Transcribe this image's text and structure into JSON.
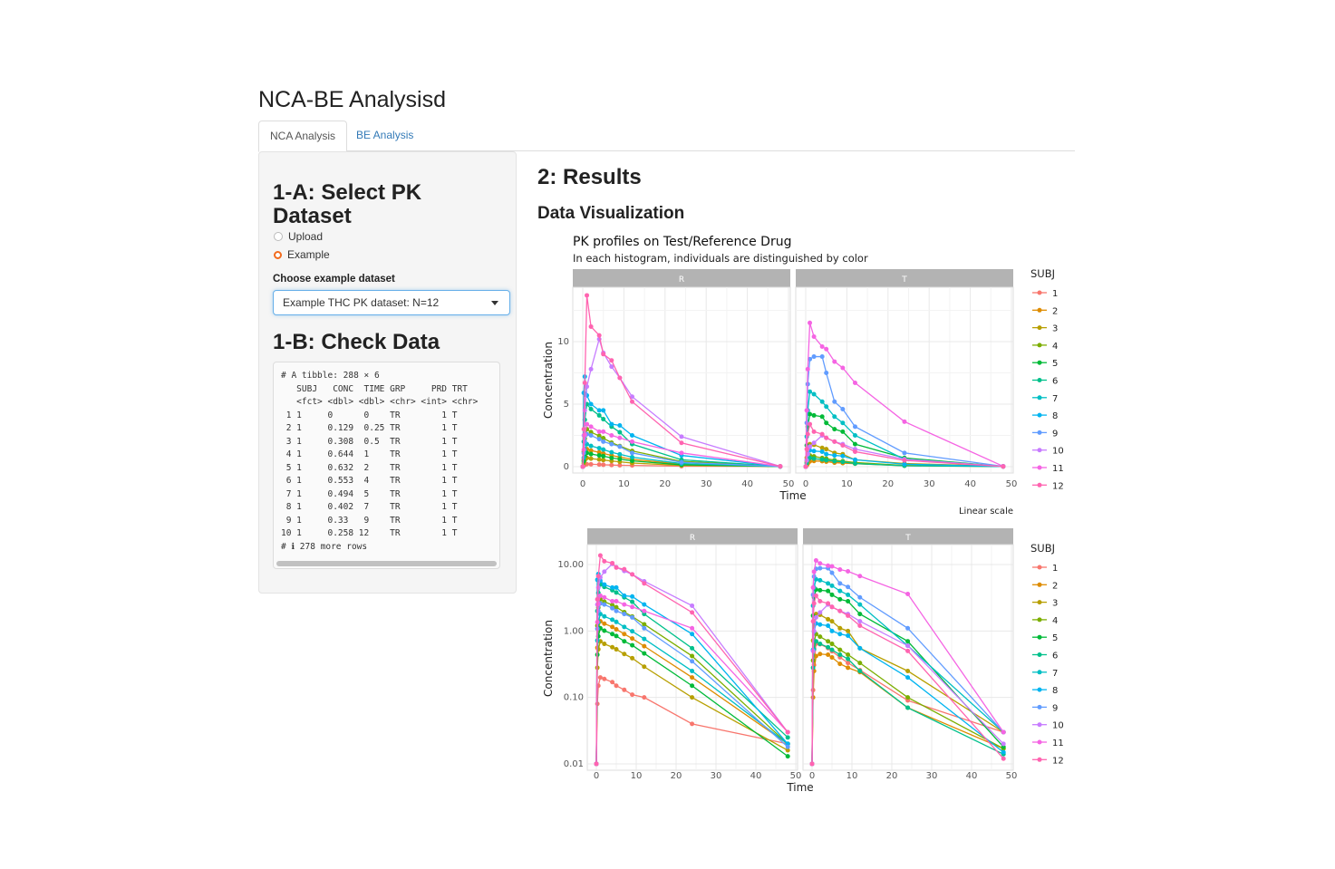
{
  "app": {
    "title": "NCA-BE Analysisd"
  },
  "tabs": [
    {
      "label": "NCA Analysis"
    },
    {
      "label": "BE Analysis"
    }
  ],
  "sidebar": {
    "section_a": "1-A: Select PK Dataset",
    "radio": [
      {
        "label": "Upload",
        "selected": false
      },
      {
        "label": "Example",
        "selected": true
      }
    ],
    "select_label": "Choose example dataset",
    "select_value": "Example THC PK dataset: N=12",
    "section_b": "1-B: Check Data",
    "tibble": "# A tibble: 288 × 6\n   SUBJ   CONC  TIME GRP     PRD TRT\n   <fct> <dbl> <dbl> <chr> <int> <chr>\n 1 1     0      0    TR        1 T\n 2 1     0.129  0.25 TR        1 T\n 3 1     0.308  0.5  TR        1 T\n 4 1     0.644  1    TR        1 T\n 5 1     0.632  2    TR        1 T\n 6 1     0.553  4    TR        1 T\n 7 1     0.494  5    TR        1 T\n 8 1     0.402  7    TR        1 T\n 9 1     0.33   9    TR        1 T\n10 1     0.258 12    TR        1 T\n# ℹ 278 more rows"
  },
  "main": {
    "results_title": "2: Results",
    "viz_title": "Data Visualization"
  },
  "chart_data": [
    {
      "type": "line",
      "scale": "linear",
      "title": "PK profiles on Test/Reference Drug",
      "subtitle": "In each histogram, individuals are distinguished by color",
      "xlabel": "Time",
      "ylabel": "Concentration",
      "caption": "Linear scale",
      "xlim": [
        0,
        50
      ],
      "ylim": [
        0,
        14
      ],
      "xticks": [
        "0",
        "10",
        "20",
        "30",
        "40",
        "50"
      ],
      "yticks": [
        "0",
        "5",
        "10"
      ],
      "legend_title": "SUBJ",
      "legend_position": "right",
      "facets": [
        "R",
        "T"
      ]
    },
    {
      "type": "line",
      "scale": "log10",
      "xlabel": "Time",
      "ylabel": "Concentration",
      "xlim": [
        0,
        50
      ],
      "ylim": [
        0.01,
        10
      ],
      "xticks": [
        "0",
        "10",
        "20",
        "30",
        "40",
        "50"
      ],
      "yticks": [
        "0.01",
        "0.10",
        "1.00",
        "10.00"
      ],
      "legend_title": "SUBJ",
      "legend_position": "right",
      "facets": [
        "R",
        "T"
      ]
    }
  ],
  "pk_data": {
    "times": [
      0,
      0.25,
      0.5,
      1,
      2,
      4,
      5,
      7,
      9,
      12,
      24,
      48
    ],
    "subjects": [
      "1",
      "2",
      "3",
      "4",
      "5",
      "6",
      "7",
      "8",
      "9",
      "10",
      "11",
      "12"
    ],
    "colors": [
      "#F8766D",
      "#DE8C00",
      "#B79F00",
      "#7CAE00",
      "#00BA38",
      "#00C08B",
      "#00BFC4",
      "#00B4F0",
      "#619CFF",
      "#C77CFF",
      "#F564E3",
      "#FF64B0"
    ],
    "R": [
      [
        0,
        0.08,
        0.15,
        0.2,
        0.19,
        0.17,
        0.15,
        0.13,
        0.11,
        0.1,
        0.04,
        0.02
      ],
      [
        0,
        0.56,
        1.05,
        1.4,
        1.29,
        1.15,
        1.06,
        0.9,
        0.77,
        0.59,
        0.2,
        0.02
      ],
      [
        0,
        0.28,
        0.53,
        0.7,
        0.64,
        0.57,
        0.53,
        0.45,
        0.39,
        0.29,
        0.1,
        0.016
      ],
      [
        0,
        1.2,
        2.25,
        3.0,
        2.76,
        2.46,
        2.28,
        1.92,
        1.65,
        1.26,
        0.42,
        0.02
      ],
      [
        0,
        0.44,
        0.83,
        1.1,
        1.01,
        0.9,
        0.84,
        0.7,
        0.61,
        0.46,
        0.15,
        0.013
      ],
      [
        0,
        2.0,
        3.75,
        5.0,
        4.6,
        4.1,
        3.8,
        3.2,
        2.75,
        1.8,
        0.55,
        0.025
      ],
      [
        0,
        0.72,
        1.35,
        1.8,
        1.66,
        1.48,
        1.37,
        1.15,
        0.99,
        0.76,
        0.25,
        0.02
      ],
      [
        0,
        5.9,
        7.2,
        5.7,
        5.0,
        4.5,
        4.5,
        3.4,
        3.3,
        2.5,
        0.9,
        0.02
      ],
      [
        0,
        1.08,
        2.0,
        2.6,
        2.5,
        2.2,
        2.0,
        1.8,
        1.6,
        1.1,
        0.35,
        0.018
      ],
      [
        0,
        2.5,
        4.5,
        6.4,
        7.8,
        10.2,
        9.1,
        8.0,
        7.1,
        5.6,
        2.4,
        0.03
      ],
      [
        0,
        1.36,
        2.55,
        3.4,
        3.2,
        2.8,
        2.8,
        2.5,
        2.3,
        2.0,
        1.1,
        0.03
      ],
      [
        0,
        3.0,
        6.7,
        13.7,
        11.2,
        10.5,
        9.0,
        8.5,
        7.1,
        5.2,
        1.9,
        0.03
      ]
    ],
    "T": [
      [
        0,
        0.129,
        0.308,
        0.644,
        0.632,
        0.553,
        0.494,
        0.402,
        0.33,
        0.258,
        0.09,
        0.03
      ],
      [
        0,
        0.1,
        0.25,
        0.42,
        0.45,
        0.44,
        0.4,
        0.32,
        0.28,
        0.24,
        0.07,
        0.017
      ],
      [
        0,
        0.72,
        1.35,
        1.8,
        1.75,
        1.5,
        1.4,
        1.1,
        1.0,
        0.55,
        0.25,
        0.03
      ],
      [
        0,
        0.36,
        0.68,
        0.9,
        0.82,
        0.7,
        0.64,
        0.52,
        0.44,
        0.33,
        0.1,
        0.017
      ],
      [
        0,
        1.7,
        3.2,
        4.2,
        4.1,
        4.0,
        3.5,
        3.0,
        2.8,
        1.8,
        0.7,
        0.018
      ],
      [
        0,
        0.28,
        0.53,
        0.7,
        0.64,
        0.57,
        0.52,
        0.44,
        0.38,
        0.25,
        0.07,
        0.014
      ],
      [
        0,
        2.4,
        4.5,
        6.0,
        5.8,
        5.2,
        4.8,
        4.0,
        3.5,
        2.5,
        0.6,
        0.03
      ],
      [
        0,
        0.52,
        0.98,
        1.3,
        1.25,
        1.2,
        1.0,
        0.9,
        0.85,
        0.55,
        0.2,
        0.015
      ],
      [
        0,
        3.5,
        6.6,
        8.6,
        8.8,
        8.8,
        7.5,
        5.2,
        4.6,
        3.2,
        1.1,
        0.03
      ],
      [
        0,
        0.5,
        1.0,
        1.6,
        1.9,
        2.5,
        2.3,
        2.0,
        1.8,
        1.4,
        0.6,
        0.02
      ],
      [
        0,
        4.5,
        7.8,
        11.5,
        10.4,
        9.6,
        9.4,
        8.4,
        7.9,
        6.7,
        3.6,
        0.03
      ],
      [
        0,
        1.4,
        2.6,
        3.4,
        2.8,
        2.6,
        2.3,
        2.0,
        1.7,
        1.2,
        0.5,
        0.012
      ]
    ]
  }
}
